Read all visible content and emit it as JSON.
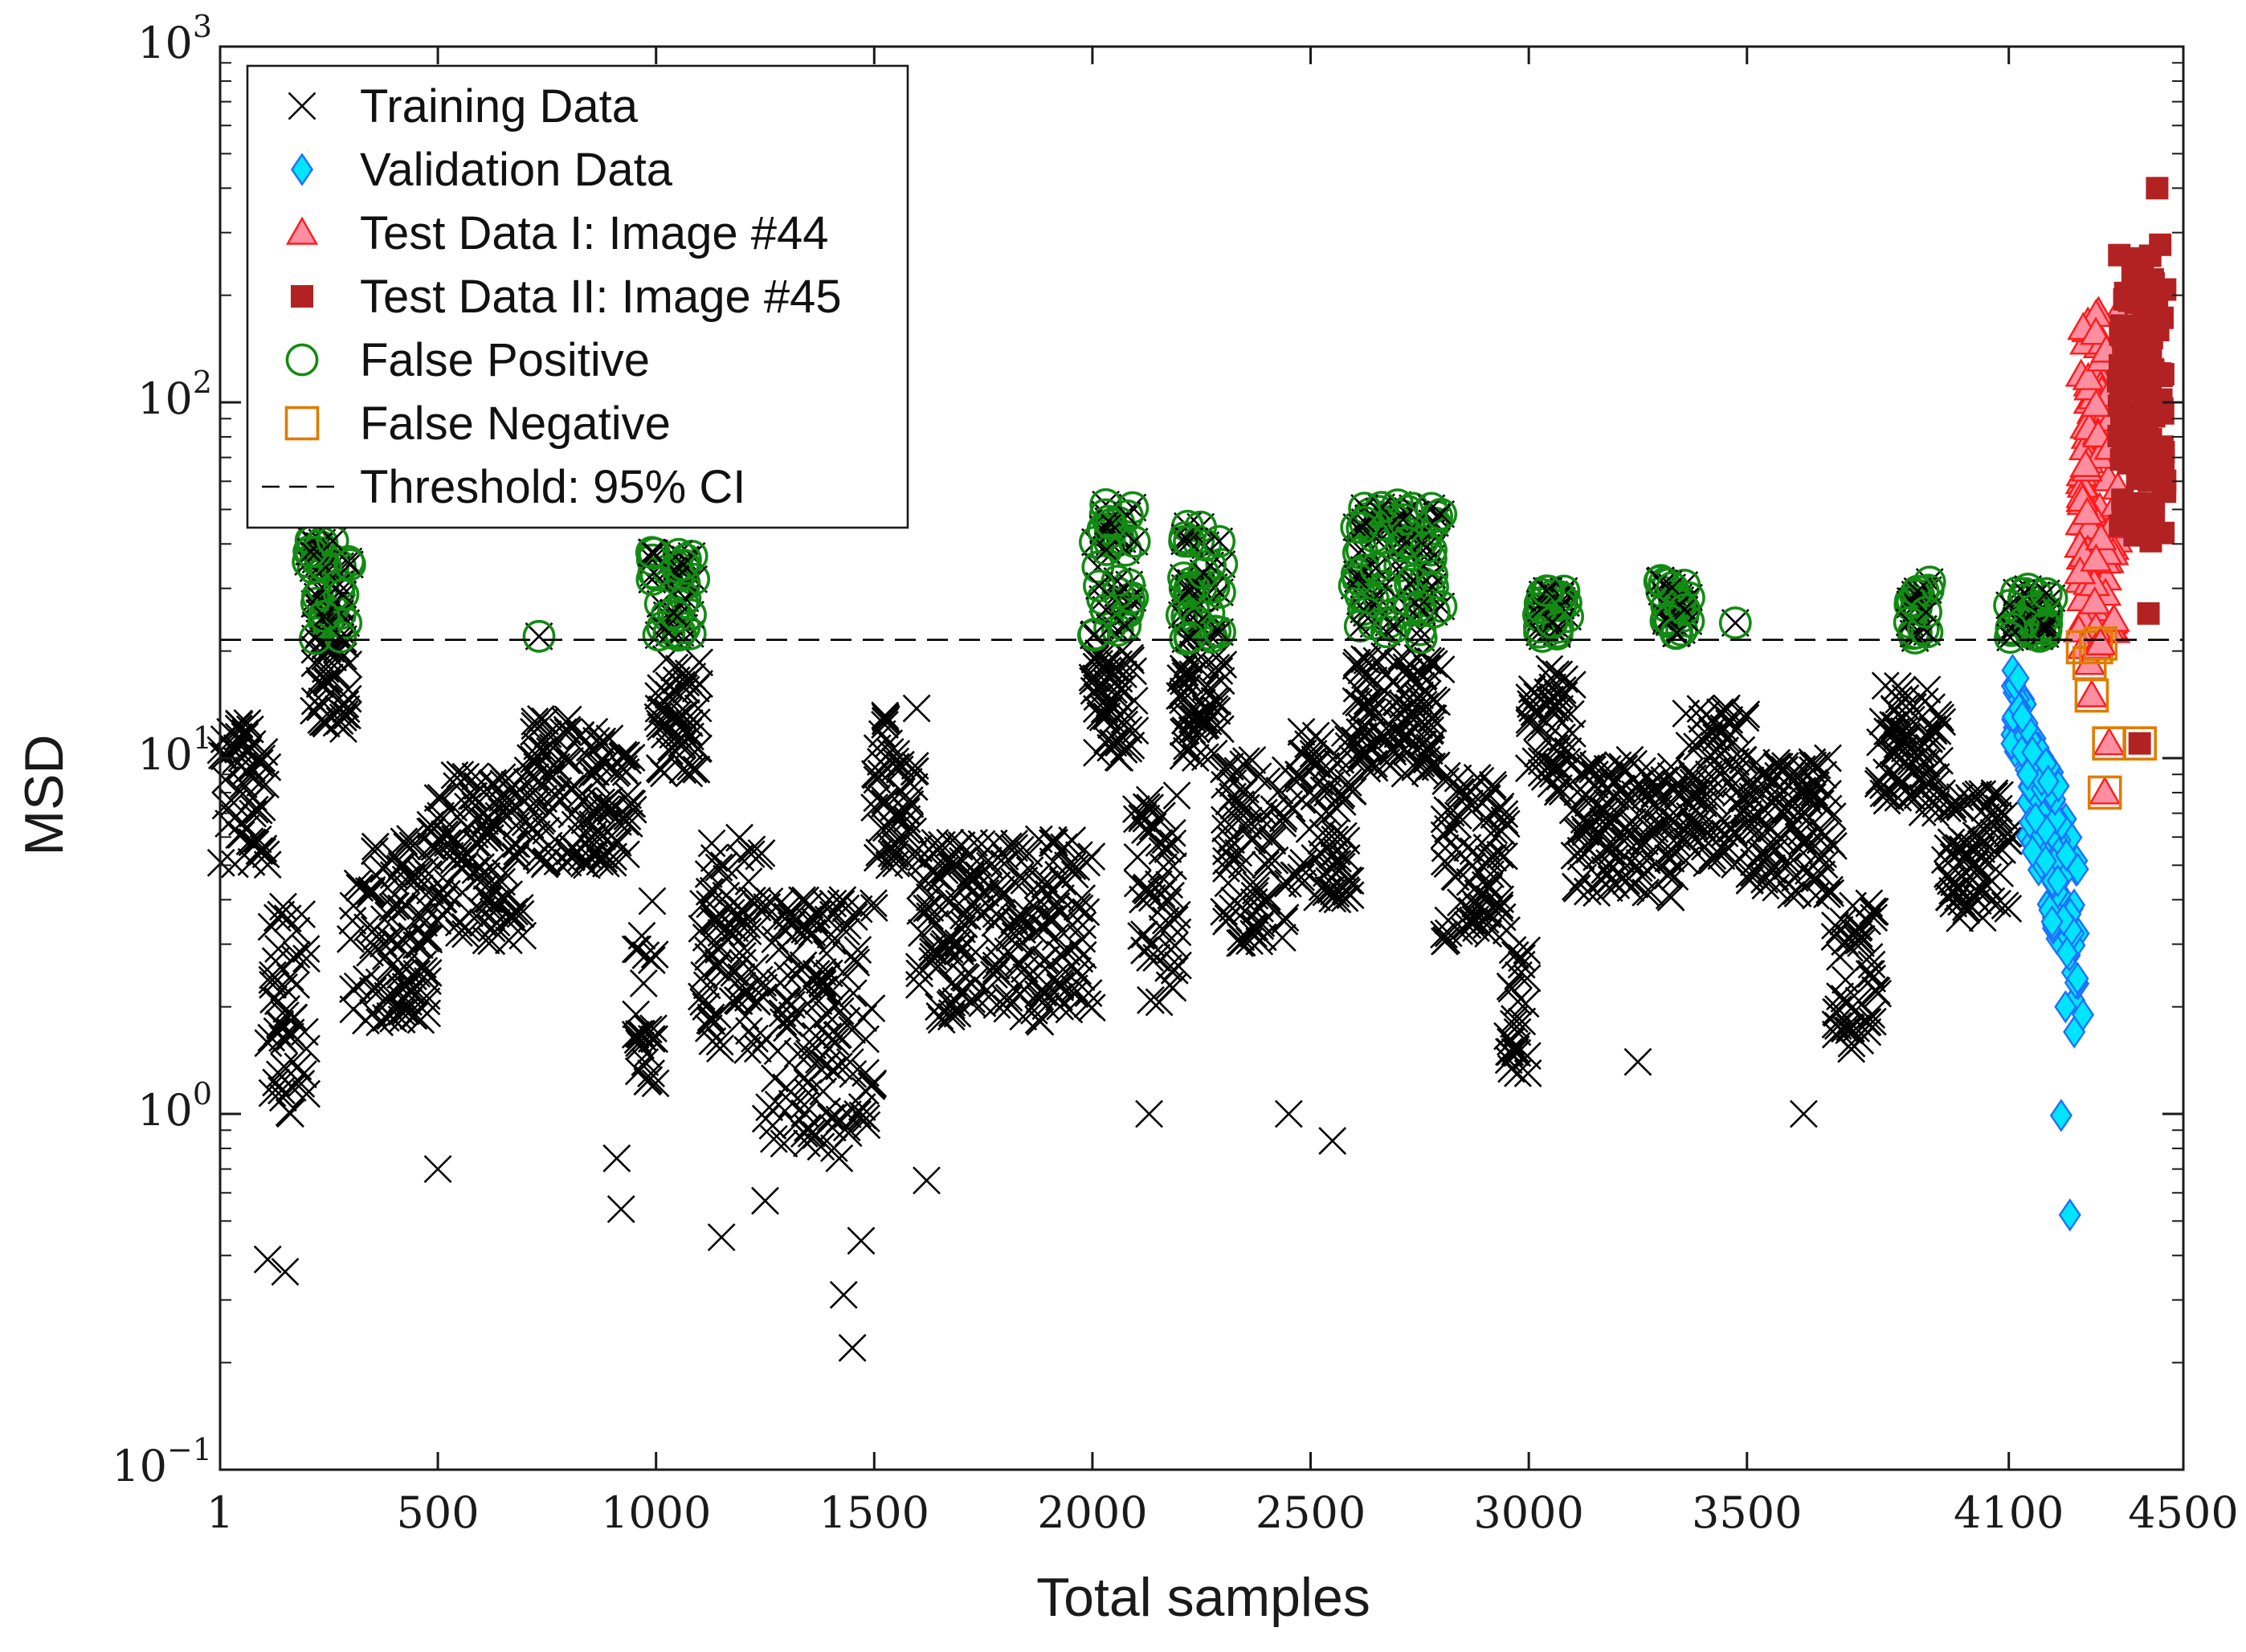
{
  "chart_data": {
    "type": "scatter",
    "title": "",
    "xlabel": "Total samples",
    "ylabel": "MSD",
    "xlim": [
      1,
      4500
    ],
    "ylim": [
      0.1,
      1000
    ],
    "yscale": "log",
    "xticks": [
      1,
      500,
      1000,
      1500,
      2000,
      2500,
      3000,
      3500,
      4100,
      4500
    ],
    "xtick_labels": [
      "1",
      "500",
      "1000",
      "1500",
      "2000",
      "2500",
      "3000",
      "3500",
      "4100",
      "4500"
    ],
    "yticks": [
      0.1,
      1,
      10,
      100,
      1000
    ],
    "ytick_labels": [
      {
        "base": "10",
        "exp": "−1"
      },
      {
        "base": "10",
        "exp": "0"
      },
      {
        "base": "10",
        "exp": "1"
      },
      {
        "base": "10",
        "exp": "2"
      },
      {
        "base": "10",
        "exp": "3"
      }
    ],
    "threshold": {
      "name": "Threshold: 95% CI",
      "y": 21.5,
      "color": "#000000",
      "style": "dashed"
    },
    "legend_position": "top-left",
    "series": [
      {
        "name": "Training Data",
        "marker": "x",
        "color": "#000000"
      },
      {
        "name": "Validation Data",
        "marker": "diamond",
        "color": "#1f6fff",
        "fill": "#00e5ff"
      },
      {
        "name": "Test Data I: Image #44",
        "marker": "triangle",
        "color": "#ff1a1a",
        "fill": "#ff8fa0"
      },
      {
        "name": "Test Data II: Image #45",
        "marker": "square-filled",
        "color": "#b22222"
      },
      {
        "name": "False Positive",
        "marker": "circle-open",
        "color": "#138a13"
      },
      {
        "name": "False Negative",
        "marker": "square-open",
        "color": "#e07b00"
      }
    ],
    "training_segments": [
      {
        "x": [
          1,
          110
        ],
        "y": [
          5,
          13
        ]
      },
      {
        "x": [
          110,
          200
        ],
        "y": [
          1,
          4
        ]
      },
      {
        "x": [
          200,
          300
        ],
        "y": [
          12,
          30
        ]
      },
      {
        "x": [
          300,
          480
        ],
        "y": [
          1.8,
          6
        ]
      },
      {
        "x": [
          480,
          700
        ],
        "y": [
          3,
          9
        ]
      },
      {
        "x": [
          700,
          800
        ],
        "y": [
          5,
          13
        ]
      },
      {
        "x": [
          800,
          950
        ],
        "y": [
          5,
          12
        ]
      },
      {
        "x": [
          950,
          1000
        ],
        "y": [
          1.2,
          4
        ]
      },
      {
        "x": [
          1000,
          1100
        ],
        "y": [
          9,
          19
        ]
      },
      {
        "x": [
          1100,
          1250
        ],
        "y": [
          1.5,
          6
        ]
      },
      {
        "x": [
          1250,
          1500
        ],
        "y": [
          0.8,
          4
        ]
      },
      {
        "x": [
          1500,
          1600
        ],
        "y": [
          5,
          14
        ]
      },
      {
        "x": [
          1600,
          2000
        ],
        "y": [
          1.8,
          6
        ]
      },
      {
        "x": [
          2000,
          2100
        ],
        "y": [
          10,
          20
        ]
      },
      {
        "x": [
          2100,
          2200
        ],
        "y": [
          2,
          8
        ]
      },
      {
        "x": [
          2200,
          2300
        ],
        "y": [
          10,
          20
        ]
      },
      {
        "x": [
          2300,
          2450
        ],
        "y": [
          3,
          10
        ]
      },
      {
        "x": [
          2450,
          2600
        ],
        "y": [
          4,
          12
        ]
      },
      {
        "x": [
          2600,
          2800
        ],
        "y": [
          9,
          20
        ]
      },
      {
        "x": [
          2800,
          2950
        ],
        "y": [
          3,
          9
        ]
      },
      {
        "x": [
          2950,
          3000
        ],
        "y": [
          1.3,
          3
        ]
      },
      {
        "x": [
          3000,
          3100
        ],
        "y": [
          8,
          18
        ]
      },
      {
        "x": [
          3100,
          3350
        ],
        "y": [
          4,
          10
        ]
      },
      {
        "x": [
          3350,
          3500
        ],
        "y": [
          5,
          14
        ]
      },
      {
        "x": [
          3500,
          3700
        ],
        "y": [
          4,
          10
        ]
      },
      {
        "x": [
          3700,
          3800
        ],
        "y": [
          1.5,
          4
        ]
      },
      {
        "x": [
          3800,
          3950
        ],
        "y": [
          7,
          16
        ]
      },
      {
        "x": [
          3950,
          4100
        ],
        "y": [
          3.5,
          8
        ]
      }
    ],
    "training_outliers": [
      {
        "x": 110,
        "y": 0.39
      },
      {
        "x": 150,
        "y": 0.36
      },
      {
        "x": 500,
        "y": 0.7
      },
      {
        "x": 920,
        "y": 0.54
      },
      {
        "x": 1150,
        "y": 0.45
      },
      {
        "x": 1250,
        "y": 0.57
      },
      {
        "x": 1430,
        "y": 0.31
      },
      {
        "x": 1450,
        "y": 0.22
      },
      {
        "x": 1470,
        "y": 0.44
      },
      {
        "x": 1620,
        "y": 0.65
      },
      {
        "x": 2130,
        "y": 1.0
      },
      {
        "x": 2450,
        "y": 1.0
      },
      {
        "x": 2550,
        "y": 0.84
      },
      {
        "x": 3250,
        "y": 1.4
      },
      {
        "x": 3630,
        "y": 1.0
      },
      {
        "x": 1420,
        "y": 0.75
      },
      {
        "x": 1270,
        "y": 0.85
      },
      {
        "x": 910,
        "y": 0.75
      }
    ],
    "validation_range": {
      "x": [
        4100,
        4260
      ],
      "y_start": [
        9,
        20
      ],
      "y_end": [
        1.8,
        6
      ]
    },
    "validation_outliers": [
      {
        "x": 4220,
        "y": 0.99
      },
      {
        "x": 4240,
        "y": 0.52
      },
      {
        "x": 4250,
        "y": 1.7
      },
      {
        "x": 4270,
        "y": 1.9
      },
      {
        "x": 4230,
        "y": 2.0
      }
    ],
    "test1_range": {
      "x": [
        4260,
        4350
      ],
      "y": [
        22,
        180
      ]
    },
    "test2_range": {
      "x": [
        4350,
        4460
      ],
      "y": [
        25,
        400
      ]
    },
    "false_positive_clusters": [
      {
        "x": [
          200,
          300
        ],
        "y": [
          21.5,
          42
        ]
      },
      {
        "x": [
          730,
          735
        ],
        "y": [
          22,
          22
        ]
      },
      {
        "x": [
          990,
          1090
        ],
        "y": [
          21.5,
          38
        ]
      },
      {
        "x": [
          2000,
          2100
        ],
        "y": [
          21.5,
          52
        ]
      },
      {
        "x": [
          2200,
          2300
        ],
        "y": [
          21.5,
          45
        ]
      },
      {
        "x": [
          2600,
          2800
        ],
        "y": [
          21.5,
          53
        ]
      },
      {
        "x": [
          3020,
          3090
        ],
        "y": [
          21.5,
          30
        ]
      },
      {
        "x": [
          3300,
          3370
        ],
        "y": [
          21.5,
          32
        ]
      },
      {
        "x": [
          3470,
          3475
        ],
        "y": [
          24,
          24
        ]
      },
      {
        "x": [
          3870,
          3920
        ],
        "y": [
          21.5,
          32
        ]
      },
      {
        "x": [
          4100,
          4200
        ],
        "y": [
          21.5,
          30
        ]
      }
    ],
    "false_negatives": [
      {
        "x": 4270,
        "y": 20.5
      },
      {
        "x": 4285,
        "y": 18.5
      },
      {
        "x": 4290,
        "y": 15
      },
      {
        "x": 4300,
        "y": 20.5
      },
      {
        "x": 4310,
        "y": 21
      },
      {
        "x": 4320,
        "y": 8
      },
      {
        "x": 4330,
        "y": 11
      },
      {
        "x": 4400,
        "y": 11
      }
    ]
  }
}
